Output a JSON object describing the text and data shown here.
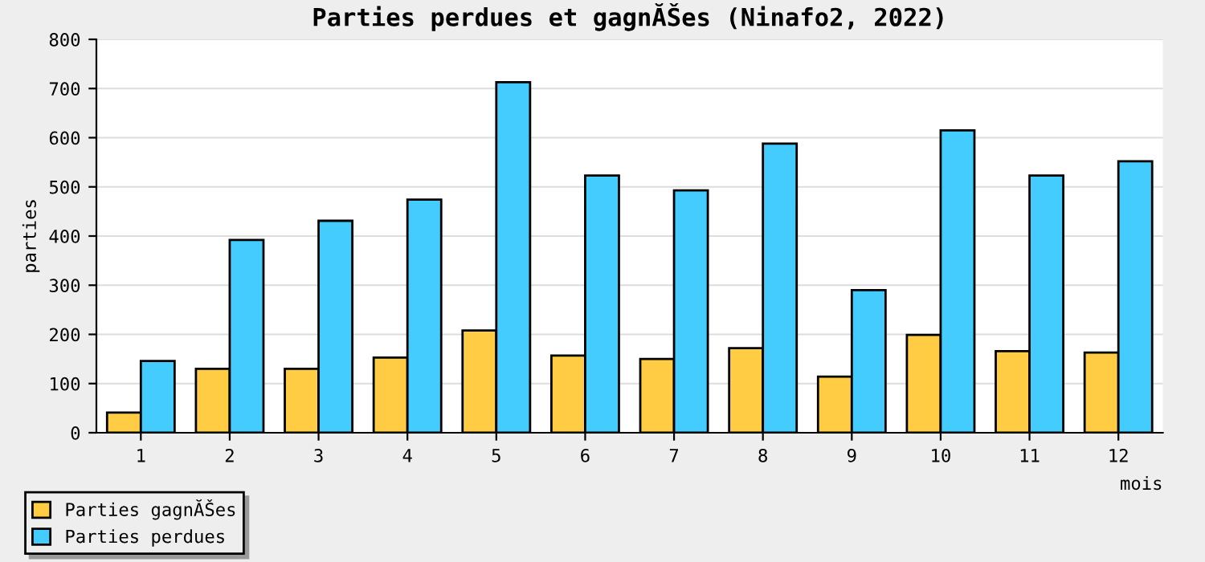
{
  "chart_data": {
    "type": "bar",
    "title": "Parties perdues et gagnĂŠes (Ninafo2, 2022)",
    "xlabel": "mois",
    "ylabel": "parties",
    "categories": [
      "1",
      "2",
      "3",
      "4",
      "5",
      "6",
      "7",
      "8",
      "9",
      "10",
      "11",
      "12"
    ],
    "series": [
      {
        "name": "Parties gagnĂŠes",
        "color": "#ffcc44",
        "values": [
          41,
          130,
          130,
          153,
          208,
          157,
          150,
          172,
          114,
          199,
          166,
          163
        ]
      },
      {
        "name": "Parties perdues",
        "color": "#44ccff",
        "values": [
          146,
          392,
          431,
          474,
          713,
          523,
          493,
          588,
          290,
          615,
          523,
          552
        ]
      }
    ],
    "ylim": [
      0,
      800
    ],
    "yticks": [
      0,
      100,
      200,
      300,
      400,
      500,
      600,
      700,
      800
    ],
    "grid": "y",
    "legend": "bottom left"
  }
}
